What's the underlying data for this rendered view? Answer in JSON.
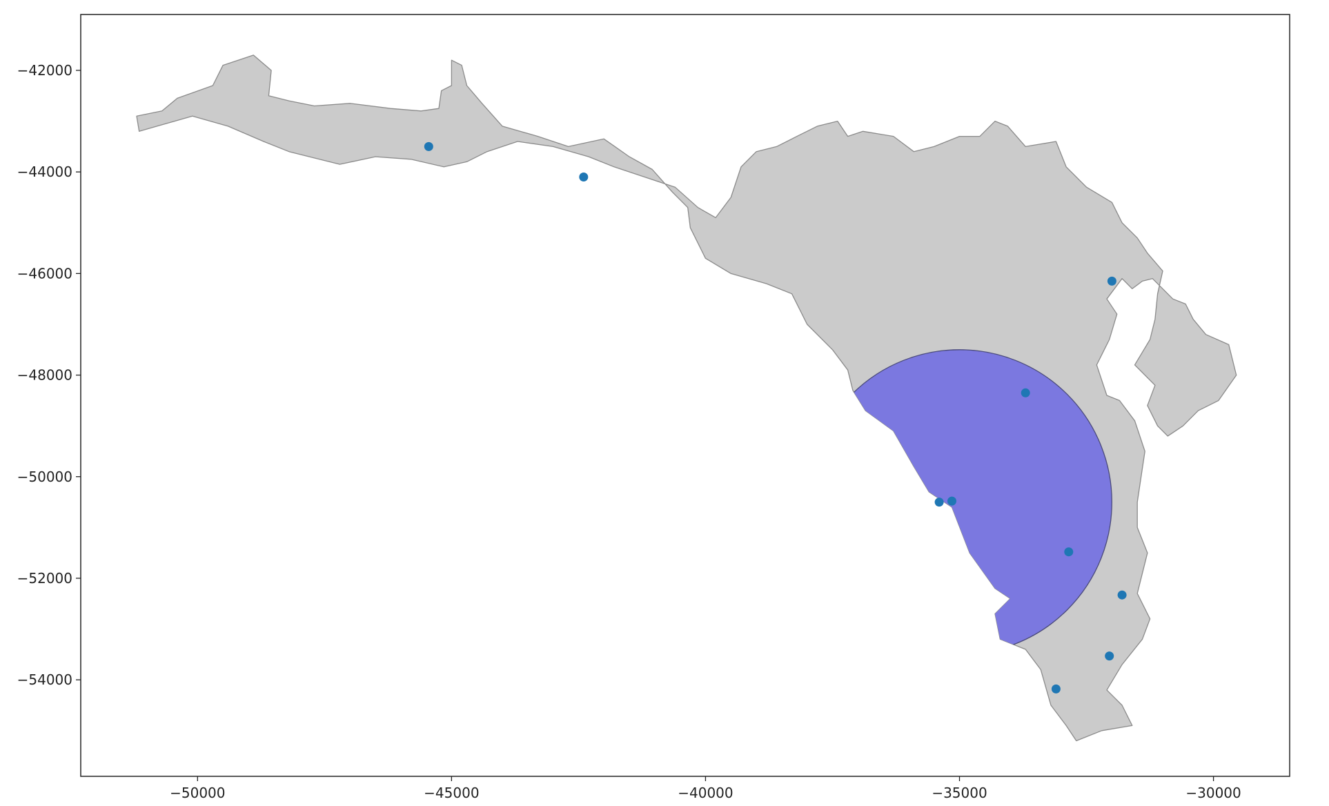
{
  "chart_data": {
    "type": "scatter",
    "title": "",
    "xlabel": "",
    "ylabel": "",
    "xlim": [
      -52300,
      -28500
    ],
    "ylim": [
      -55900,
      -40900
    ],
    "xticks": [
      -50000,
      -45000,
      -40000,
      -35000,
      -30000
    ],
    "yticks": [
      -42000,
      -44000,
      -46000,
      -48000,
      -50000,
      -52000,
      -54000
    ],
    "xtick_labels": [
      "−50000",
      "−45000",
      "−40000",
      "−35000",
      "−30000"
    ],
    "ytick_labels": [
      "−42000",
      "−44000",
      "−46000",
      "−48000",
      "−50000",
      "−52000",
      "−54000"
    ],
    "grid": false,
    "colors": {
      "land_fill": "#cbcbcb",
      "land_edge": "#8a8a8a",
      "buffer_fill": "#7b78e0",
      "buffer_edge": "#4a4a7a",
      "points": "#1f77b4",
      "axes": "#222222"
    },
    "points": [
      {
        "x": -45450,
        "y": -43500
      },
      {
        "x": -42400,
        "y": -44100
      },
      {
        "x": -32000,
        "y": -46150
      },
      {
        "x": -33700,
        "y": -48350
      },
      {
        "x": -35400,
        "y": -50500
      },
      {
        "x": -35150,
        "y": -50480
      },
      {
        "x": -32850,
        "y": -51480
      },
      {
        "x": -31800,
        "y": -52330
      },
      {
        "x": -32050,
        "y": -53530
      },
      {
        "x": -33100,
        "y": -54180
      }
    ],
    "land_polygons": [
      [
        [
          -51150,
          -43200
        ],
        [
          -51200,
          -42900
        ],
        [
          -50700,
          -42800
        ],
        [
          -50400,
          -42550
        ],
        [
          -49700,
          -42300
        ],
        [
          -49500,
          -41900
        ],
        [
          -48900,
          -41700
        ],
        [
          -48550,
          -42000
        ],
        [
          -48600,
          -42500
        ],
        [
          -48200,
          -42600
        ],
        [
          -47700,
          -42700
        ],
        [
          -47000,
          -42650
        ],
        [
          -46200,
          -42750
        ],
        [
          -45600,
          -42800
        ],
        [
          -45250,
          -42750
        ],
        [
          -45200,
          -42400
        ],
        [
          -45000,
          -42300
        ],
        [
          -45000,
          -41800
        ],
        [
          -44800,
          -41900
        ],
        [
          -44700,
          -42300
        ],
        [
          -44400,
          -42650
        ],
        [
          -44000,
          -43100
        ],
        [
          -43300,
          -43300
        ],
        [
          -42700,
          -43500
        ],
        [
          -42000,
          -43350
        ],
        [
          -41500,
          -43700
        ],
        [
          -41050,
          -43950
        ],
        [
          -40650,
          -44400
        ],
        [
          -40350,
          -44700
        ],
        [
          -40300,
          -45100
        ],
        [
          -40000,
          -45700
        ],
        [
          -39500,
          -46000
        ],
        [
          -38800,
          -46200
        ],
        [
          -38300,
          -46400
        ],
        [
          -38000,
          -47000
        ],
        [
          -37500,
          -47500
        ],
        [
          -37200,
          -47900
        ],
        [
          -37100,
          -48300
        ],
        [
          -36850,
          -48700
        ],
        [
          -36300,
          -49100
        ],
        [
          -35900,
          -49800
        ],
        [
          -35600,
          -50300
        ],
        [
          -35150,
          -50600
        ],
        [
          -34800,
          -51500
        ],
        [
          -34300,
          -52200
        ],
        [
          -34000,
          -52400
        ],
        [
          -34300,
          -52700
        ],
        [
          -34200,
          -53200
        ],
        [
          -33700,
          -53400
        ],
        [
          -33400,
          -53800
        ],
        [
          -33200,
          -54500
        ],
        [
          -32900,
          -54900
        ],
        [
          -32700,
          -55200
        ],
        [
          -32200,
          -55000
        ],
        [
          -31600,
          -54900
        ],
        [
          -31800,
          -54500
        ],
        [
          -32100,
          -54200
        ],
        [
          -31800,
          -53700
        ],
        [
          -31400,
          -53200
        ],
        [
          -31250,
          -52800
        ],
        [
          -31500,
          -52300
        ],
        [
          -31300,
          -51500
        ],
        [
          -31500,
          -51000
        ],
        [
          -31500,
          -50500
        ],
        [
          -31350,
          -49500
        ],
        [
          -31550,
          -48900
        ],
        [
          -31850,
          -48500
        ],
        [
          -32100,
          -48400
        ],
        [
          -32300,
          -47800
        ],
        [
          -32050,
          -47300
        ],
        [
          -31900,
          -46800
        ],
        [
          -32100,
          -46500
        ],
        [
          -31800,
          -46100
        ],
        [
          -31600,
          -46300
        ],
        [
          -31400,
          -46150
        ],
        [
          -31200,
          -46100
        ],
        [
          -30800,
          -46500
        ],
        [
          -30550,
          -46600
        ],
        [
          -30400,
          -46900
        ],
        [
          -30150,
          -47200
        ],
        [
          -29700,
          -47400
        ],
        [
          -29550,
          -48000
        ],
        [
          -29900,
          -48500
        ],
        [
          -30300,
          -48700
        ],
        [
          -30600,
          -49000
        ],
        [
          -30900,
          -49200
        ],
        [
          -31100,
          -49000
        ],
        [
          -31300,
          -48600
        ],
        [
          -31150,
          -48200
        ],
        [
          -31550,
          -47800
        ],
        [
          -31250,
          -47300
        ],
        [
          -31150,
          -46900
        ],
        [
          -31100,
          -46400
        ],
        [
          -31000,
          -45950
        ],
        [
          -31300,
          -45600
        ],
        [
          -31500,
          -45300
        ],
        [
          -31800,
          -45000
        ],
        [
          -32000,
          -44600
        ],
        [
          -32500,
          -44300
        ],
        [
          -32900,
          -43900
        ],
        [
          -33100,
          -43400
        ],
        [
          -33700,
          -43500
        ],
        [
          -34050,
          -43100
        ],
        [
          -34300,
          -43000
        ],
        [
          -34600,
          -43300
        ],
        [
          -35000,
          -43300
        ],
        [
          -35500,
          -43500
        ],
        [
          -35900,
          -43600
        ],
        [
          -36300,
          -43300
        ],
        [
          -36900,
          -43200
        ],
        [
          -37200,
          -43300
        ],
        [
          -37400,
          -43000
        ],
        [
          -37800,
          -43100
        ],
        [
          -38200,
          -43300
        ],
        [
          -38600,
          -43500
        ],
        [
          -39000,
          -43600
        ],
        [
          -39300,
          -43900
        ],
        [
          -39500,
          -44500
        ],
        [
          -39800,
          -44900
        ],
        [
          -40150,
          -44700
        ],
        [
          -40600,
          -44300
        ],
        [
          -41200,
          -44100
        ],
        [
          -41800,
          -43900
        ],
        [
          -42300,
          -43700
        ],
        [
          -43000,
          -43500
        ],
        [
          -43700,
          -43400
        ],
        [
          -44300,
          -43600
        ],
        [
          -44700,
          -43800
        ],
        [
          -45150,
          -43900
        ],
        [
          -45800,
          -43750
        ],
        [
          -46500,
          -43700
        ],
        [
          -47200,
          -43850
        ],
        [
          -47800,
          -43700
        ],
        [
          -48200,
          -43600
        ],
        [
          -48700,
          -43400
        ],
        [
          -49400,
          -43100
        ],
        [
          -50100,
          -42900
        ],
        [
          -50800,
          -43100
        ],
        [
          -51150,
          -43200
        ]
      ]
    ],
    "buffer": {
      "center": [
        -35000,
        -50500
      ],
      "radius": 3000,
      "clipped_to_land": true
    }
  }
}
